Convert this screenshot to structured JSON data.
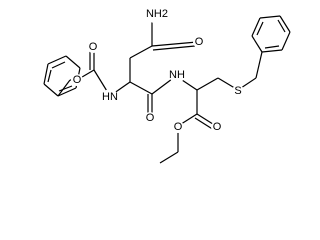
{
  "atoms": [
    "NH2",
    "O",
    "O",
    "O",
    "HN",
    "O",
    "NH",
    "S",
    "O",
    "O"
  ]
}
